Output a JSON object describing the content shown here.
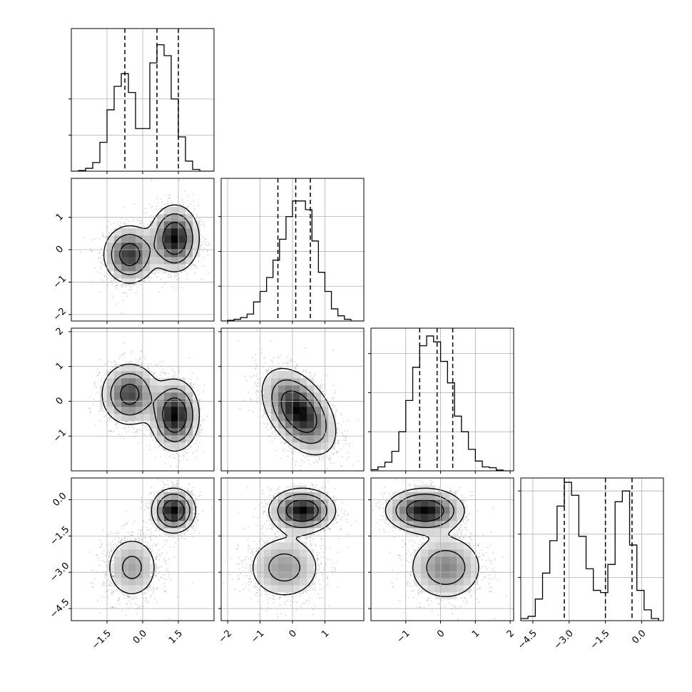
{
  "chart_data": {
    "type": "corner",
    "n_params": 4,
    "grid": true,
    "contour_levels": 3,
    "quantiles": [
      0.16,
      0.5,
      0.84
    ],
    "params": [
      {
        "range": [
          -3.0,
          3.0
        ],
        "ticks": [
          -1.5,
          0.0,
          1.5
        ],
        "tick_labels": [
          "−1.5",
          "0.0",
          "1.5"
        ],
        "quantile_values": [
          -0.75,
          0.6,
          1.5
        ],
        "hist_bins": [
          -3.0,
          -2.7,
          -2.4,
          -2.1,
          -1.8,
          -1.5,
          -1.2,
          -0.9,
          -0.6,
          -0.3,
          0.0,
          0.3,
          0.6,
          0.9,
          1.2,
          1.5,
          1.8,
          2.1,
          2.4,
          2.7,
          3.0
        ],
        "hist_counts": [
          0,
          2,
          8,
          24,
          80,
          170,
          235,
          270,
          218,
          118,
          118,
          300,
          350,
          320,
          200,
          95,
          28,
          5,
          0,
          0
        ],
        "hist_ylim": [
          0,
          395
        ],
        "hist_ticks": [
          100,
          200
        ]
      },
      {
        "range": [
          -2.2,
          2.2
        ],
        "ticks": [
          -2,
          -1,
          0,
          1
        ],
        "tick_labels": [
          "−2",
          "−1",
          "0",
          "1"
        ],
        "axis_tick_labels": [
          "−2",
          "−1",
          "0",
          "1"
        ],
        "quantile_values": [
          -0.45,
          0.1,
          0.55
        ],
        "hist_bins": [
          -2.2,
          -2.0,
          -1.8,
          -1.6,
          -1.4,
          -1.2,
          -1.0,
          -0.8,
          -0.6,
          -0.4,
          -0.2,
          0.0,
          0.2,
          0.4,
          0.6,
          0.8,
          1.0,
          1.2,
          1.4,
          1.6,
          1.8,
          2.0,
          2.2
        ],
        "hist_counts": [
          0,
          2,
          5,
          10,
          20,
          55,
          85,
          125,
          175,
          235,
          300,
          345,
          345,
          320,
          230,
          140,
          85,
          35,
          15,
          5,
          0,
          0
        ],
        "hist_ylim": [
          0,
          410
        ],
        "hist_ticks": [
          100,
          200,
          300
        ]
      },
      {
        "range": [
          -2.0,
          2.1
        ],
        "ticks": [
          -1,
          0,
          1,
          2
        ],
        "tick_labels": [
          "−1",
          "0",
          "1",
          "2"
        ],
        "quantile_values": [
          -0.6,
          -0.1,
          0.35
        ],
        "hist_bins": [
          -2.0,
          -1.8,
          -1.6,
          -1.4,
          -1.2,
          -1.0,
          -0.8,
          -0.6,
          -0.4,
          -0.2,
          0.0,
          0.2,
          0.4,
          0.6,
          0.8,
          1.0,
          1.2,
          1.4,
          1.6,
          1.8,
          2.0
        ],
        "hist_counts": [
          3,
          10,
          22,
          50,
          100,
          180,
          265,
          320,
          345,
          330,
          280,
          225,
          140,
          100,
          55,
          25,
          10,
          8,
          2,
          0
        ],
        "hist_ylim": [
          0,
          365
        ],
        "hist_ticks": [
          100,
          200,
          300
        ]
      },
      {
        "range": [
          -5.0,
          0.9
        ],
        "ticks": [
          -4.5,
          -3.0,
          -1.5,
          0.0
        ],
        "tick_labels": [
          "−4.5",
          "−3.0",
          "−1.5",
          "0.0"
        ],
        "quantile_values": [
          -3.2,
          -1.5,
          -0.4
        ],
        "hist_bins": [
          -5.0,
          -4.7,
          -4.4,
          -4.1,
          -3.8,
          -3.5,
          -3.2,
          -2.9,
          -2.6,
          -2.3,
          -2.0,
          -1.7,
          -1.4,
          -1.1,
          -0.8,
          -0.5,
          -0.2,
          0.1,
          0.4,
          0.7
        ],
        "hist_counts": [
          5,
          10,
          50,
          110,
          185,
          265,
          320,
          290,
          195,
          120,
          70,
          65,
          130,
          275,
          300,
          175,
          70,
          25,
          5
        ],
        "hist_ylim": [
          0,
          330
        ],
        "hist_ticks": [
          100,
          200,
          300
        ]
      }
    ],
    "pairs": [
      {
        "xi": 0,
        "yi": 1,
        "modes": [
          {
            "center": [
              -0.55,
              -0.15
            ],
            "sigma": [
              0.55,
              0.45
            ],
            "rho": 0.0,
            "weight": 0.45
          },
          {
            "center": [
              1.35,
              0.35
            ],
            "sigma": [
              0.5,
              0.5
            ],
            "rho": 0.0,
            "weight": 0.55
          }
        ]
      },
      {
        "xi": 0,
        "yi": 2,
        "modes": [
          {
            "center": [
              -0.55,
              0.2
            ],
            "sigma": [
              0.6,
              0.45
            ],
            "rho": 0.0,
            "weight": 0.45
          },
          {
            "center": [
              1.35,
              -0.4
            ],
            "sigma": [
              0.5,
              0.5
            ],
            "rho": 0.0,
            "weight": 0.55
          }
        ]
      },
      {
        "xi": 1,
        "yi": 2,
        "modes": [
          {
            "center": [
              0.2,
              -0.3
            ],
            "sigma": [
              0.55,
              0.6
            ],
            "rho": -0.45,
            "weight": 1.0
          }
        ]
      },
      {
        "xi": 0,
        "yi": 3,
        "modes": [
          {
            "center": [
              -0.45,
              -2.8
            ],
            "sigma": [
              0.6,
              0.7
            ],
            "rho": 0.0,
            "weight": 0.45
          },
          {
            "center": [
              1.3,
              -0.45
            ],
            "sigma": [
              0.45,
              0.45
            ],
            "rho": 0.0,
            "weight": 0.55
          }
        ]
      },
      {
        "xi": 1,
        "yi": 3,
        "modes": [
          {
            "center": [
              -0.25,
              -2.8
            ],
            "sigma": [
              0.6,
              0.7
            ],
            "rho": 0.0,
            "weight": 0.45
          },
          {
            "center": [
              0.3,
              -0.45
            ],
            "sigma": [
              0.5,
              0.45
            ],
            "rho": 0.0,
            "weight": 0.55
          }
        ]
      },
      {
        "xi": 2,
        "yi": 3,
        "modes": [
          {
            "center": [
              0.15,
              -2.8
            ],
            "sigma": [
              0.55,
              0.7
            ],
            "rho": 0.0,
            "weight": 0.45
          },
          {
            "center": [
              -0.45,
              -0.45
            ],
            "sigma": [
              0.55,
              0.45
            ],
            "rho": 0.0,
            "weight": 0.55
          }
        ]
      }
    ]
  }
}
